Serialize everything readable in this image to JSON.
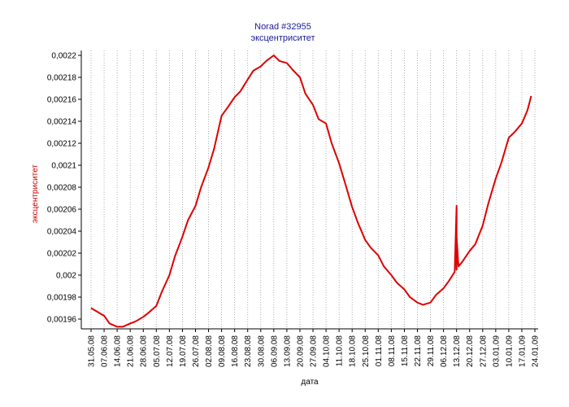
{
  "chart_data": {
    "type": "line",
    "title": "Norad #32955",
    "subtitle": "эксцентриситет",
    "xlabel": "дата",
    "ylabel": "эксцентриситет",
    "ylim": [
      0.00195,
      0.00222
    ],
    "grid": "vertical dotted",
    "series_color": "#dd0000",
    "x_ticks": [
      "31.05.08",
      "07.06.08",
      "14.06.08",
      "21.06.08",
      "28.06.08",
      "05.07.08",
      "12.07.08",
      "19.07.08",
      "26.07.08",
      "02.08.08",
      "09.08.08",
      "16.08.08",
      "23.08.08",
      "30.08.08",
      "06.09.08",
      "13.09.08",
      "20.09.08",
      "27.09.08",
      "04.10.08",
      "11.10.08",
      "18.10.08",
      "25.10.08",
      "01.11.08",
      "08.11.08",
      "15.11.08",
      "22.11.08",
      "29.11.08",
      "06.12.08",
      "13.12.08",
      "20.12.08",
      "27.12.08",
      "03.01.09",
      "10.01.09",
      "17.01.09",
      "24.01.09"
    ],
    "y_ticks": [
      "0,00196",
      "0,00198",
      "0,002",
      "0,00202",
      "0,00204",
      "0,00206",
      "0,00208",
      "0,0021",
      "0,00212",
      "0,00214",
      "0,00216",
      "0,00218",
      "0,0022"
    ],
    "series": [
      {
        "x": [
          "2008-05-31",
          "2008-06-03",
          "2008-06-07",
          "2008-06-10",
          "2008-06-14",
          "2008-06-17",
          "2008-06-21",
          "2008-06-24",
          "2008-06-28",
          "2008-07-01",
          "2008-07-05",
          "2008-07-08",
          "2008-07-12",
          "2008-07-15",
          "2008-07-19",
          "2008-07-22",
          "2008-07-26",
          "2008-07-29",
          "2008-08-02",
          "2008-08-05",
          "2008-08-09",
          "2008-08-12",
          "2008-08-16",
          "2008-08-19",
          "2008-08-23",
          "2008-08-26",
          "2008-08-30",
          "2008-09-02",
          "2008-09-06",
          "2008-09-09",
          "2008-09-13",
          "2008-09-16",
          "2008-09-20",
          "2008-09-23",
          "2008-09-27",
          "2008-09-30",
          "2008-10-04",
          "2008-10-07",
          "2008-10-11",
          "2008-10-14",
          "2008-10-18",
          "2008-10-21",
          "2008-10-25",
          "2008-10-28",
          "2008-11-01",
          "2008-11-04",
          "2008-11-08",
          "2008-11-11",
          "2008-11-15",
          "2008-11-18",
          "2008-11-22",
          "2008-11-25",
          "2008-11-29",
          "2008-12-02",
          "2008-12-06",
          "2008-12-09",
          "2008-12-12",
          "2008-12-13",
          "2008-12-13",
          "2008-12-13",
          "2008-12-14",
          "2008-12-16",
          "2008-12-20",
          "2008-12-23",
          "2008-12-27",
          "2008-12-30",
          "2009-01-03",
          "2009-01-06",
          "2009-01-10",
          "2009-01-13",
          "2009-01-17",
          "2009-01-20",
          "2009-01-22"
        ],
        "y": [
          0.00197,
          0.001967,
          0.001963,
          0.001956,
          0.001953,
          0.001953,
          0.001956,
          0.001958,
          0.001962,
          0.001966,
          0.001972,
          0.001985,
          0.002,
          0.002017,
          0.002035,
          0.00205,
          0.002063,
          0.00208,
          0.002098,
          0.002115,
          0.002145,
          0.002152,
          0.002162,
          0.002167,
          0.002178,
          0.002186,
          0.00219,
          0.002195,
          0.0022,
          0.002195,
          0.002193,
          0.002187,
          0.00218,
          0.002165,
          0.002155,
          0.002142,
          0.002138,
          0.00212,
          0.002102,
          0.002085,
          0.002062,
          0.002048,
          0.002032,
          0.002025,
          0.002018,
          0.002008,
          0.002,
          0.001993,
          0.001987,
          0.00198,
          0.001975,
          0.001973,
          0.001975,
          0.001982,
          0.001988,
          0.001995,
          0.002003,
          0.002063,
          0.002005,
          0.002035,
          0.002008,
          0.002012,
          0.002022,
          0.002028,
          0.002045,
          0.002065,
          0.002088,
          0.002102,
          0.002125,
          0.00213,
          0.002138,
          0.00215,
          0.002163
        ]
      }
    ]
  }
}
